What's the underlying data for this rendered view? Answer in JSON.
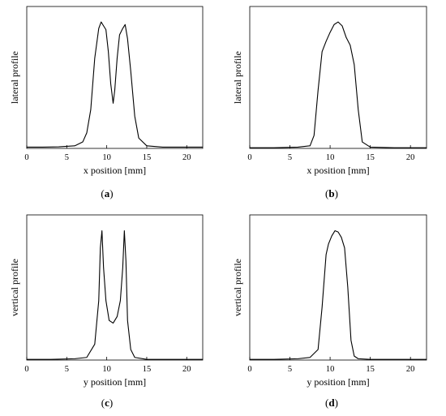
{
  "chart_data": [
    {
      "type": "line",
      "panel_label": "a",
      "xlabel": "x position [mm]",
      "ylabel": "lateral profile",
      "xlim": [
        0,
        22
      ],
      "ylim": [
        0,
        1.1
      ],
      "x_ticks": [
        0,
        5,
        10,
        15,
        20
      ],
      "y_ticks_shown": false,
      "grid": false,
      "series": [
        {
          "x": [
            0,
            2,
            4,
            6,
            7,
            7.5,
            8,
            8.5,
            9,
            9.3,
            9.6,
            9.9,
            10.2,
            10.5,
            10.8,
            11.0,
            11.3,
            11.6,
            12.0,
            12.3,
            12.6,
            13.0,
            13.5,
            14,
            15,
            17,
            20,
            22
          ],
          "y": [
            0.01,
            0.01,
            0.012,
            0.02,
            0.05,
            0.12,
            0.3,
            0.7,
            0.93,
            0.98,
            0.95,
            0.92,
            0.75,
            0.5,
            0.35,
            0.45,
            0.7,
            0.88,
            0.93,
            0.96,
            0.85,
            0.6,
            0.25,
            0.08,
            0.02,
            0.01,
            0.01,
            0.01
          ]
        }
      ]
    },
    {
      "type": "line",
      "panel_label": "b",
      "xlabel": "x position [mm]",
      "ylabel": "lateral profile",
      "xlim": [
        0,
        22
      ],
      "ylim": [
        0,
        1.1
      ],
      "x_ticks": [
        0,
        5,
        10,
        15,
        20
      ],
      "y_ticks_shown": false,
      "grid": false,
      "series": [
        {
          "x": [
            0,
            3,
            6,
            7.5,
            8,
            8.5,
            9,
            9.5,
            10,
            10.5,
            11,
            11.5,
            12,
            12.5,
            13,
            13.5,
            14,
            15,
            18,
            22
          ],
          "y": [
            0.005,
            0.005,
            0.01,
            0.02,
            0.1,
            0.45,
            0.75,
            0.83,
            0.9,
            0.96,
            0.98,
            0.95,
            0.86,
            0.8,
            0.65,
            0.3,
            0.05,
            0.01,
            0.005,
            0.005
          ]
        }
      ]
    },
    {
      "type": "line",
      "panel_label": "c",
      "xlabel": "y position [mm]",
      "ylabel": "vertical profile",
      "xlim": [
        0,
        22
      ],
      "ylim": [
        0,
        1.1
      ],
      "x_ticks": [
        0,
        5,
        10,
        15,
        20
      ],
      "y_ticks_shown": false,
      "grid": false,
      "series": [
        {
          "x": [
            0,
            3,
            6,
            7.5,
            8.5,
            9.0,
            9.2,
            9.4,
            9.6,
            9.9,
            10.3,
            10.8,
            11.3,
            11.7,
            12.0,
            12.2,
            12.4,
            12.6,
            13.0,
            13.5,
            15,
            18,
            22
          ],
          "y": [
            0.005,
            0.005,
            0.01,
            0.02,
            0.12,
            0.45,
            0.85,
            0.98,
            0.7,
            0.45,
            0.3,
            0.28,
            0.33,
            0.45,
            0.7,
            0.98,
            0.75,
            0.3,
            0.08,
            0.02,
            0.005,
            0.005,
            0.005
          ]
        }
      ]
    },
    {
      "type": "line",
      "panel_label": "d",
      "xlabel": "y position [mm]",
      "ylabel": "vertical profile",
      "xlim": [
        0,
        22
      ],
      "ylim": [
        0,
        1.1
      ],
      "x_ticks": [
        0,
        5,
        10,
        15,
        20
      ],
      "y_ticks_shown": false,
      "grid": false,
      "series": [
        {
          "x": [
            0,
            3,
            6,
            7.5,
            8.5,
            9.0,
            9.5,
            9.8,
            10.2,
            10.6,
            11.0,
            11.4,
            11.8,
            12.2,
            12.6,
            13.0,
            13.5,
            15,
            18,
            22
          ],
          "y": [
            0.005,
            0.005,
            0.01,
            0.02,
            0.08,
            0.4,
            0.8,
            0.88,
            0.94,
            0.98,
            0.97,
            0.93,
            0.85,
            0.55,
            0.15,
            0.03,
            0.01,
            0.005,
            0.005,
            0.005
          ]
        }
      ]
    }
  ]
}
